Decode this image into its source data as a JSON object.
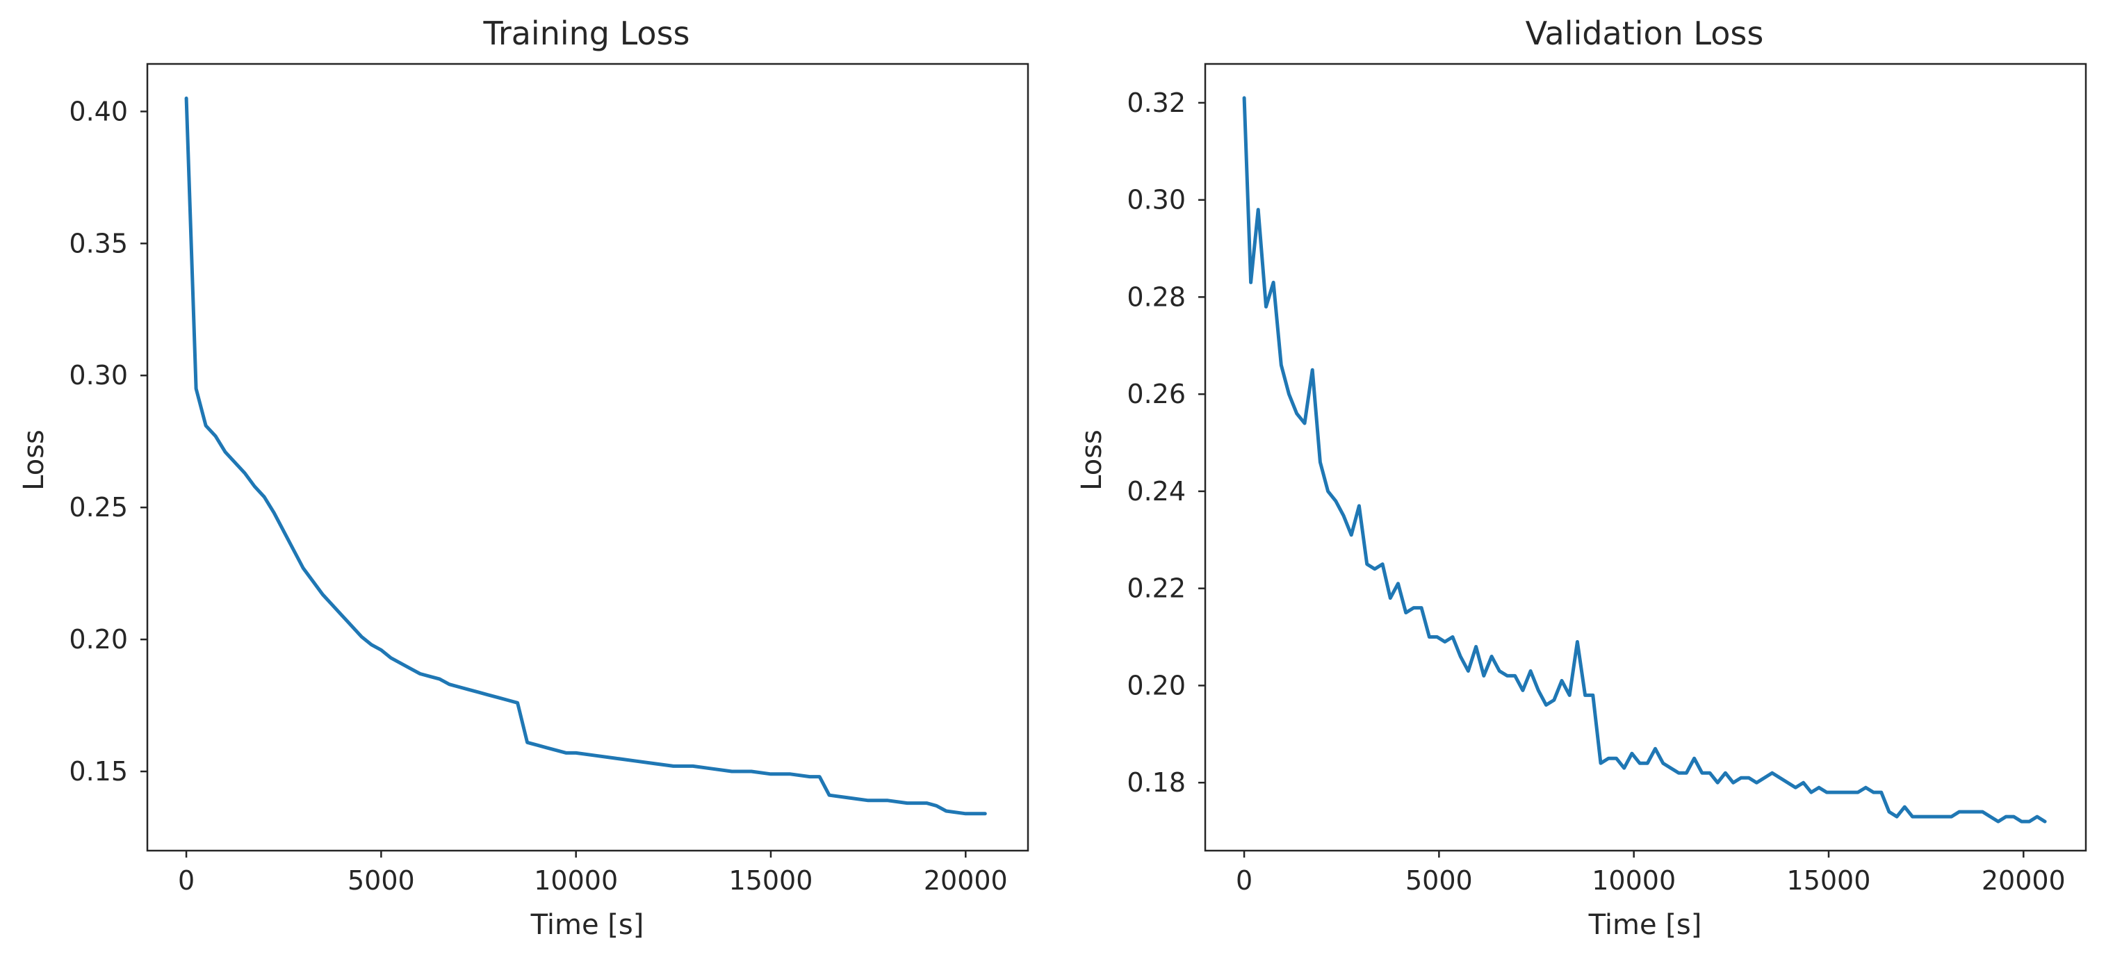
{
  "colors": {
    "line": "#1f77b4",
    "axes": "#262626",
    "background": "#ffffff"
  },
  "chart_data": [
    {
      "type": "line",
      "title": "Training Loss",
      "xlabel": "Time [s]",
      "ylabel": "Loss",
      "xlim": [
        -1000,
        21600
      ],
      "ylim": [
        0.12,
        0.418
      ],
      "xticks": [
        0,
        5000,
        10000,
        15000,
        20000
      ],
      "xtick_labels": [
        "0",
        "5000",
        "10000",
        "15000",
        "20000"
      ],
      "yticks": [
        0.15,
        0.2,
        0.25,
        0.3,
        0.35,
        0.4
      ],
      "ytick_labels": [
        "0.15",
        "0.20",
        "0.25",
        "0.30",
        "0.35",
        "0.40"
      ],
      "grid": false,
      "series": [
        {
          "x": [
            0,
            250,
            500,
            750,
            1000,
            1250,
            1500,
            1750,
            2000,
            2250,
            2500,
            2750,
            3000,
            3250,
            3500,
            3750,
            4000,
            4250,
            4500,
            4750,
            5000,
            5250,
            5500,
            5750,
            6000,
            6250,
            6500,
            6750,
            7000,
            7250,
            7500,
            7750,
            8000,
            8250,
            8500,
            8750,
            9000,
            9250,
            9500,
            9750,
            10000,
            10500,
            11000,
            11500,
            12000,
            12500,
            13000,
            13500,
            14000,
            14500,
            15000,
            15500,
            16000,
            16250,
            16500,
            17000,
            17500,
            18000,
            18500,
            19000,
            19250,
            19500,
            20000,
            20500
          ],
          "y": [
            0.405,
            0.295,
            0.281,
            0.277,
            0.271,
            0.267,
            0.263,
            0.258,
            0.254,
            0.248,
            0.241,
            0.234,
            0.227,
            0.222,
            0.217,
            0.213,
            0.209,
            0.205,
            0.201,
            0.198,
            0.196,
            0.193,
            0.191,
            0.189,
            0.187,
            0.186,
            0.185,
            0.183,
            0.182,
            0.181,
            0.18,
            0.179,
            0.178,
            0.177,
            0.176,
            0.161,
            0.16,
            0.159,
            0.158,
            0.157,
            0.157,
            0.156,
            0.155,
            0.154,
            0.153,
            0.152,
            0.152,
            0.151,
            0.15,
            0.15,
            0.149,
            0.149,
            0.148,
            0.148,
            0.141,
            0.14,
            0.139,
            0.139,
            0.138,
            0.138,
            0.137,
            0.135,
            0.134,
            0.134
          ]
        }
      ]
    },
    {
      "type": "line",
      "title": "Validation Loss",
      "xlabel": "Time [s]",
      "ylabel": "Loss",
      "xlim": [
        -1000,
        21600
      ],
      "ylim": [
        0.166,
        0.328
      ],
      "xticks": [
        0,
        5000,
        10000,
        15000,
        20000
      ],
      "xtick_labels": [
        "0",
        "5000",
        "10000",
        "15000",
        "20000"
      ],
      "yticks": [
        0.18,
        0.2,
        0.22,
        0.24,
        0.26,
        0.28,
        0.3,
        0.32
      ],
      "ytick_labels": [
        "0.18",
        "0.20",
        "0.22",
        "0.24",
        "0.26",
        "0.28",
        "0.30",
        "0.32"
      ],
      "grid": false,
      "series": [
        {
          "x": [
            0,
            170,
            360,
            560,
            750,
            950,
            1150,
            1350,
            1550,
            1750,
            1950,
            2150,
            2350,
            2550,
            2750,
            2950,
            3150,
            3350,
            3550,
            3750,
            3950,
            4150,
            4350,
            4550,
            4750,
            4950,
            5150,
            5350,
            5550,
            5750,
            5950,
            6150,
            6350,
            6550,
            6750,
            6950,
            7150,
            7350,
            7550,
            7750,
            7950,
            8150,
            8350,
            8550,
            8750,
            8950,
            9150,
            9350,
            9550,
            9750,
            9950,
            10150,
            10350,
            10550,
            10750,
            10950,
            11150,
            11350,
            11550,
            11750,
            11950,
            12150,
            12350,
            12550,
            12750,
            12950,
            13150,
            13350,
            13550,
            13750,
            13950,
            14150,
            14350,
            14550,
            14750,
            14950,
            15150,
            15350,
            15550,
            15750,
            15950,
            16150,
            16350,
            16550,
            16750,
            16950,
            17150,
            17350,
            17550,
            17750,
            17950,
            18150,
            18350,
            18550,
            18750,
            18950,
            19150,
            19350,
            19550,
            19750,
            19950,
            20150,
            20350,
            20550
          ],
          "y": [
            0.321,
            0.283,
            0.298,
            0.278,
            0.283,
            0.266,
            0.26,
            0.256,
            0.254,
            0.265,
            0.246,
            0.24,
            0.238,
            0.235,
            0.231,
            0.237,
            0.225,
            0.224,
            0.225,
            0.218,
            0.221,
            0.215,
            0.216,
            0.216,
            0.21,
            0.21,
            0.209,
            0.21,
            0.206,
            0.203,
            0.208,
            0.202,
            0.206,
            0.203,
            0.202,
            0.202,
            0.199,
            0.203,
            0.199,
            0.196,
            0.197,
            0.201,
            0.198,
            0.209,
            0.198,
            0.198,
            0.184,
            0.185,
            0.185,
            0.183,
            0.186,
            0.184,
            0.184,
            0.187,
            0.184,
            0.183,
            0.182,
            0.182,
            0.185,
            0.182,
            0.182,
            0.18,
            0.182,
            0.18,
            0.181,
            0.181,
            0.18,
            0.181,
            0.182,
            0.181,
            0.18,
            0.179,
            0.18,
            0.178,
            0.179,
            0.178,
            0.178,
            0.178,
            0.178,
            0.178,
            0.179,
            0.178,
            0.178,
            0.174,
            0.173,
            0.175,
            0.173,
            0.173,
            0.173,
            0.173,
            0.173,
            0.173,
            0.174,
            0.174,
            0.174,
            0.174,
            0.173,
            0.172,
            0.173,
            0.173,
            0.172,
            0.172,
            0.173,
            0.172
          ]
        }
      ]
    }
  ]
}
